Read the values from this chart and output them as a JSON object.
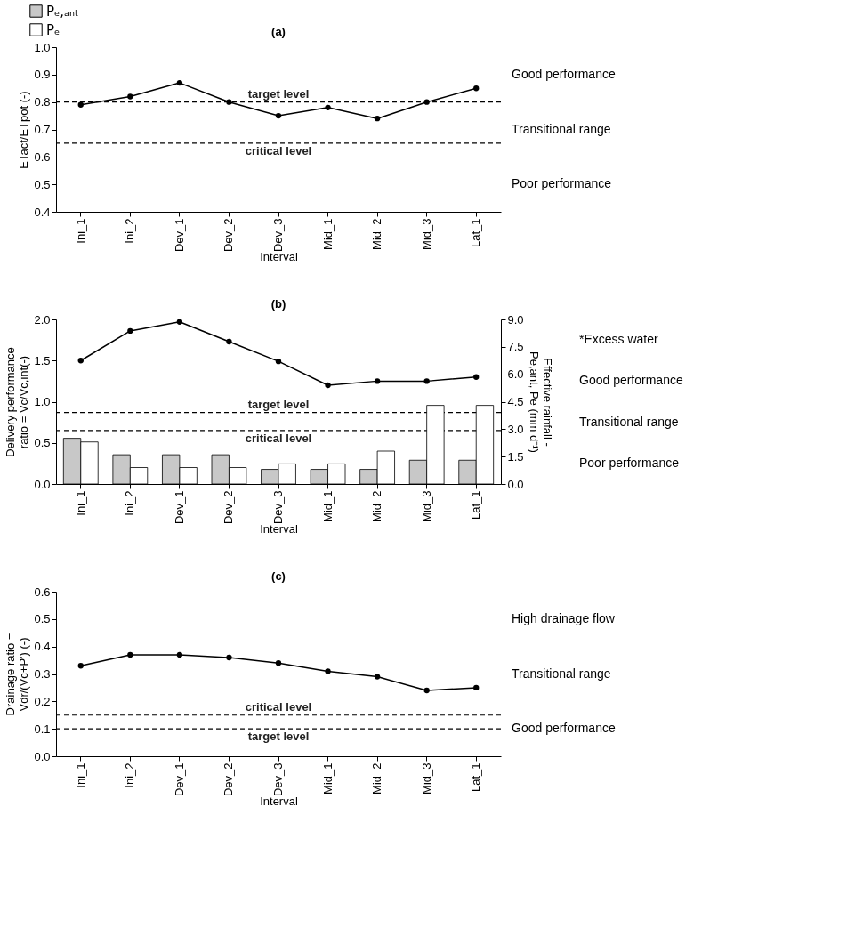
{
  "chart_data": [
    {
      "type": "line",
      "title": "(a)",
      "xlabel": "Interval",
      "ylabel": "ETact/ETpot (-)",
      "categories": [
        "Ini_1",
        "Ini_2",
        "Dev_1",
        "Dev_2",
        "Dev_3",
        "Mid_1",
        "Mid_2",
        "Mid_3",
        "Lat_1"
      ],
      "series": [
        {
          "color": "#000000",
          "values": [
            0.79,
            0.82,
            0.87,
            0.8,
            0.75,
            0.78,
            0.74,
            0.8,
            0.85
          ]
        }
      ],
      "ylim": [
        0.4,
        1.0
      ],
      "yticks": [
        0.4,
        0.5,
        0.6,
        0.7,
        0.8,
        0.9,
        {
          "value": 1,
          "label": "1.0"
        }
      ],
      "ref_lines": [
        {
          "axis": "y",
          "value": 0.8,
          "label": "target level",
          "line_style": "dashed",
          "color": "#000000"
        },
        {
          "axis": "y",
          "value": 0.65,
          "label": "critical level",
          "line_style": "dashed",
          "color": "#000000"
        }
      ],
      "annotations": [
        "Good performance",
        "Transitional range",
        "Poor performance"
      ],
      "marker": "circle",
      "line_style": "solid",
      "grid": false
    },
    {
      "type": "bar",
      "title": "(b)",
      "xlabel": "Interval",
      "ylabel": "Delivery performance\nratio = Vc/Vc,int(-)",
      "y2label": "Effective rainfall -\nPe,ant, Pe (mm d⁻¹)",
      "categories": [
        "Ini_1",
        "Ini_2",
        "Dev_1",
        "Dev_2",
        "Dev_3",
        "Mid_1",
        "Mid_2",
        "Mid_3",
        "Lat_1"
      ],
      "series": [
        {
          "name": "Pₑ,ₐₙₜ",
          "color": "#c8c8c8",
          "axis": "y2",
          "values": [
            2.5,
            1.6,
            1.6,
            1.6,
            0.8,
            0.8,
            0.8,
            1.3,
            1.3
          ]
        },
        {
          "name": "Pₑ",
          "color": "#ffffff",
          "axis": "y2",
          "values": [
            2.3,
            0.9,
            0.9,
            0.9,
            1.1,
            1.1,
            1.8,
            4.3,
            4.3
          ]
        },
        {
          "type": "line",
          "color": "#000000",
          "values": [
            1.5,
            1.86,
            1.97,
            1.73,
            1.49,
            1.2,
            1.25,
            1.25,
            1.3
          ]
        }
      ],
      "ylim": [
        0.0,
        2.0
      ],
      "yticks": [
        {
          "value": 0,
          "label": "0.0"
        },
        0.5,
        {
          "value": 1,
          "label": "1.0"
        },
        1.5,
        {
          "value": 2,
          "label": "2.0"
        }
      ],
      "y2lim": [
        0.0,
        9.0
      ],
      "y2ticks": [
        {
          "value": 0,
          "label": "0.0"
        },
        1.5,
        {
          "value": 3,
          "label": "3.0"
        },
        4.5,
        {
          "value": 6,
          "label": "6.0"
        },
        7.5,
        {
          "value": 9,
          "label": "9.0"
        }
      ],
      "ref_lines": [
        {
          "axis": "y",
          "value": 0.87,
          "label": "target level",
          "line_style": "dashed",
          "color": "#000000"
        },
        {
          "axis": "y",
          "value": 0.65,
          "label": "critical level",
          "line_style": "dashed",
          "color": "#000000"
        }
      ],
      "annotations": [
        "*Excess water",
        "Good performance",
        "Transitional range",
        "Poor performance"
      ],
      "legend": "top left",
      "marker": "circle",
      "line_style": "solid",
      "grid": false
    },
    {
      "type": "line",
      "title": "(c)",
      "xlabel": "Interval",
      "ylabel": "Drainage ratio =\nVdr/(Vc+P') (-)",
      "categories": [
        "Ini_1",
        "Ini_2",
        "Dev_1",
        "Dev_2",
        "Dev_3",
        "Mid_1",
        "Mid_2",
        "Mid_3",
        "Lat_1"
      ],
      "series": [
        {
          "color": "#000000",
          "values": [
            0.33,
            0.37,
            0.37,
            0.36,
            0.34,
            0.31,
            0.29,
            0.24,
            0.25
          ]
        }
      ],
      "ylim": [
        0.0,
        0.6
      ],
      "yticks": [
        {
          "value": 0,
          "label": "0.0"
        },
        0.1,
        0.2,
        0.3,
        0.4,
        0.5,
        0.6
      ],
      "ref_lines": [
        {
          "axis": "y",
          "value": 0.15,
          "label": "critical level",
          "line_style": "dashed",
          "color": "#000000"
        },
        {
          "axis": "y",
          "value": 0.1,
          "label": "target level",
          "line_style": "dashed",
          "color": "#000000"
        }
      ],
      "annotations": [
        "High drainage flow",
        "Transitional range",
        "Good performance"
      ],
      "marker": "circle",
      "line_style": "solid",
      "grid": false
    }
  ]
}
